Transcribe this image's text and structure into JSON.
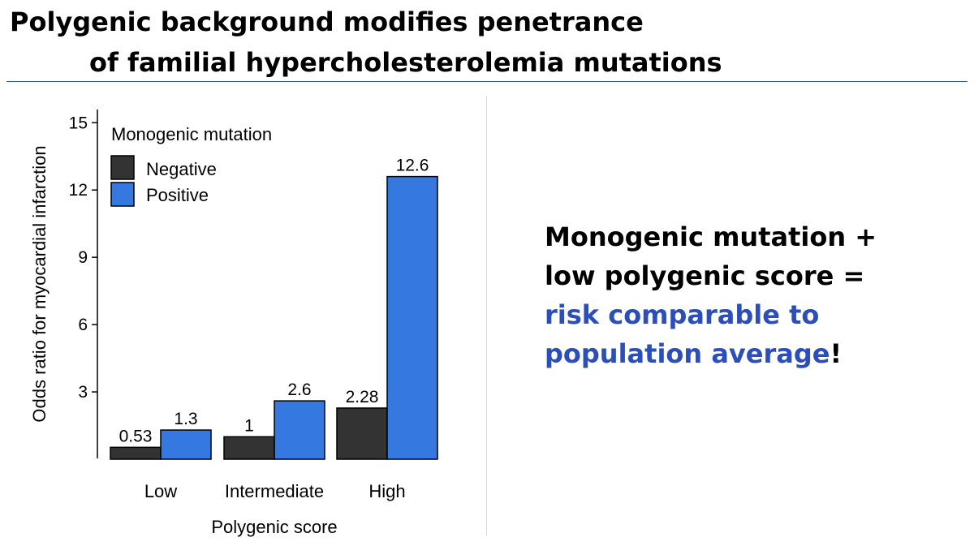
{
  "slide": {
    "title_line1": "Polygenic background modifies penetrance",
    "title_line2": "of familial hypercholesterolemia mutations",
    "message": {
      "line1": "Monogenic mutation +",
      "line2": "low polygenic score =",
      "line3_highlight": "risk comparable to",
      "line4_highlight": "population average",
      "line4_end": "!"
    },
    "colors": {
      "accent_blue": "#2b4eb8",
      "rule": "#2f4fb3"
    }
  },
  "chart_data": {
    "type": "bar",
    "title": "",
    "xlabel": "Polygenic score",
    "ylabel": "Odds ratio for myocardial infarction",
    "categories": [
      "Low",
      "Intermediate",
      "High"
    ],
    "series": [
      {
        "name": "Negative",
        "color": "#333333",
        "values": [
          0.53,
          1,
          2.28
        ],
        "labels": [
          "0.53",
          "1",
          "2.28"
        ]
      },
      {
        "name": "Positive",
        "color": "#3478e0",
        "values": [
          1.3,
          2.6,
          12.6
        ],
        "labels": [
          "1.3",
          "2.6",
          "12.6"
        ]
      }
    ],
    "legend_title": "Monogenic mutation",
    "legend_position": "top-left",
    "yticks": [
      3,
      6,
      9,
      12,
      15
    ],
    "ylim": [
      0,
      15.5
    ],
    "grid": false
  }
}
